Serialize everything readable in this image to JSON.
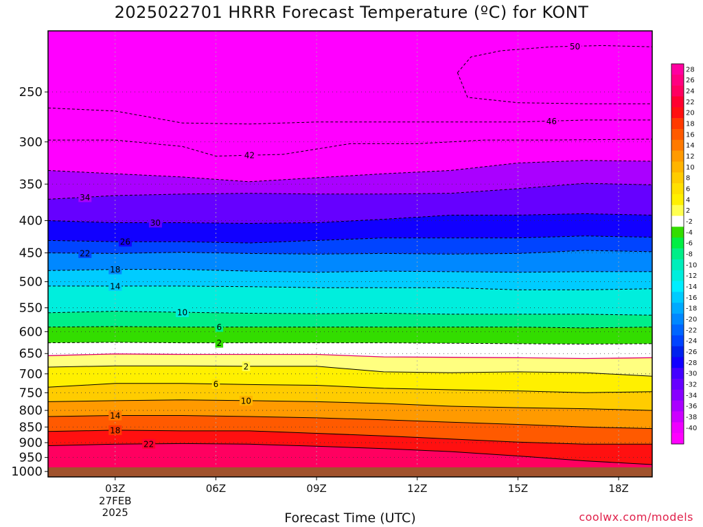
{
  "chart_data": {
    "type": "heatmap",
    "title": "2025022701 HRRR Forecast Temperature (ºC) for KONT",
    "xlabel": "Forecast Time (UTC)",
    "credit": "coolwx.com/models",
    "x_ticks": [
      {
        "label": "03Z",
        "hour": 3
      },
      {
        "label": "06Z",
        "hour": 6
      },
      {
        "label": "09Z",
        "hour": 9
      },
      {
        "label": "12Z",
        "hour": 12
      },
      {
        "label": "15Z",
        "hour": 15
      },
      {
        "label": "18Z",
        "hour": 18
      }
    ],
    "x_date_lines": [
      "27FEB",
      "2025"
    ],
    "x_range_hours": [
      1,
      19
    ],
    "y_ticks": [
      250,
      300,
      350,
      400,
      450,
      500,
      550,
      600,
      650,
      700,
      750,
      800,
      850,
      900,
      950,
      1000
    ],
    "y_range_hpa": [
      200,
      1020
    ],
    "y_scale": "log",
    "surface_pressure_hpa": 985,
    "colorbar": {
      "labels": [
        28,
        26,
        24,
        22,
        20,
        18,
        16,
        14,
        12,
        10,
        8,
        6,
        4,
        2,
        -2,
        -4,
        -6,
        -8,
        -10,
        -12,
        -14,
        -16,
        -18,
        -20,
        -22,
        -24,
        -26,
        -28,
        -30,
        -32,
        -34,
        -36,
        -38,
        -40
      ],
      "colors": [
        "#ff00a0",
        "#ff0080",
        "#ff0060",
        "#ff0030",
        "#ff1010",
        "#ff3a00",
        "#ff5a00",
        "#ff7a00",
        "#ff9a00",
        "#ffb400",
        "#ffcc00",
        "#ffe000",
        "#fff000",
        "#ffff50",
        "#ffffff",
        "#33dd00",
        "#00ee44",
        "#00ee88",
        "#00eebb",
        "#00eedd",
        "#00eeff",
        "#00ccff",
        "#00aaff",
        "#0088ff",
        "#0066ff",
        "#0044ff",
        "#0022ee",
        "#1100ff",
        "#4400ff",
        "#6600ff",
        "#8800ff",
        "#aa00ff",
        "#cc00ff",
        "#ee00ff",
        "#ff00ff"
      ]
    },
    "contours": [
      {
        "value": -50,
        "label_at_hour": 16.7,
        "points": [
          [
            13.2,
            233
          ],
          [
            13.6,
            220
          ],
          [
            14.5,
            215
          ],
          [
            16,
            212
          ],
          [
            17.5,
            211
          ],
          [
            19,
            212
          ]
        ],
        "hook": [
          [
            13.2,
            233
          ],
          [
            13.5,
            255
          ],
          [
            15,
            260
          ],
          [
            17,
            261
          ],
          [
            19,
            261
          ]
        ]
      },
      {
        "value": -46,
        "label_at_hour": 16,
        "points": [
          [
            1,
            265
          ],
          [
            3,
            268
          ],
          [
            5,
            280
          ],
          [
            7,
            281
          ],
          [
            9,
            279
          ],
          [
            11,
            279
          ],
          [
            13,
            279
          ],
          [
            15,
            279
          ],
          [
            17,
            277
          ],
          [
            19,
            277
          ]
        ]
      },
      {
        "value": -42,
        "label_at_hour": 7,
        "points": [
          [
            1,
            298
          ],
          [
            3,
            298
          ],
          [
            5,
            305
          ],
          [
            6,
            316
          ],
          [
            8,
            314
          ],
          [
            10,
            302
          ],
          [
            12,
            302
          ],
          [
            14,
            298
          ],
          [
            16,
            298
          ],
          [
            19,
            297
          ]
        ]
      },
      {
        "value": -38,
        "label_at_hour": null,
        "points": [
          [
            1,
            333
          ],
          [
            3,
            337
          ],
          [
            5,
            341
          ],
          [
            7,
            347
          ],
          [
            9,
            342
          ],
          [
            11,
            337
          ],
          [
            13,
            333
          ],
          [
            15,
            324
          ],
          [
            17,
            321
          ],
          [
            19,
            322
          ]
        ]
      },
      {
        "value": -34,
        "label_at_hour": 2.1,
        "points": [
          [
            1,
            370
          ],
          [
            3,
            365
          ],
          [
            5,
            363
          ],
          [
            7,
            362
          ],
          [
            9,
            363
          ],
          [
            11,
            363
          ],
          [
            13,
            362
          ],
          [
            15,
            356
          ],
          [
            17,
            349
          ],
          [
            19,
            351
          ]
        ]
      },
      {
        "value": -30,
        "label_at_hour": 4.2,
        "points": [
          [
            1,
            400
          ],
          [
            3,
            403
          ],
          [
            5,
            403
          ],
          [
            7,
            404
          ],
          [
            9,
            403
          ],
          [
            11,
            398
          ],
          [
            13,
            392
          ],
          [
            15,
            392
          ],
          [
            17,
            390
          ],
          [
            19,
            392
          ]
        ]
      },
      {
        "value": -26,
        "label_at_hour": 3.3,
        "points": [
          [
            1,
            430
          ],
          [
            3,
            432
          ],
          [
            5,
            432
          ],
          [
            7,
            434
          ],
          [
            9,
            430
          ],
          [
            11,
            426
          ],
          [
            13,
            426
          ],
          [
            15,
            426
          ],
          [
            17,
            423
          ],
          [
            19,
            425
          ]
        ]
      },
      {
        "value": -22,
        "label_at_hour": 2.1,
        "points": [
          [
            1,
            450
          ],
          [
            3,
            451
          ],
          [
            5,
            449
          ],
          [
            7,
            451
          ],
          [
            9,
            452
          ],
          [
            11,
            451
          ],
          [
            13,
            452
          ],
          [
            15,
            451
          ],
          [
            17,
            446
          ],
          [
            19,
            448
          ]
        ]
      },
      {
        "value": -18,
        "label_at_hour": 3,
        "points": [
          [
            1,
            480
          ],
          [
            3,
            478
          ],
          [
            5,
            478
          ],
          [
            7,
            481
          ],
          [
            9,
            483
          ],
          [
            11,
            481
          ],
          [
            13,
            482
          ],
          [
            15,
            483
          ],
          [
            17,
            482
          ],
          [
            19,
            482
          ]
        ]
      },
      {
        "value": -14,
        "label_at_hour": 3,
        "points": [
          [
            1,
            508
          ],
          [
            3,
            508
          ],
          [
            5,
            508
          ],
          [
            7,
            509
          ],
          [
            9,
            511
          ],
          [
            11,
            511
          ],
          [
            13,
            511
          ],
          [
            15,
            515
          ],
          [
            17,
            515
          ],
          [
            19,
            513
          ]
        ]
      },
      {
        "value": -10,
        "label_at_hour": 5,
        "points": [
          [
            1,
            560
          ],
          [
            3,
            557
          ],
          [
            5,
            559
          ],
          [
            7,
            561
          ],
          [
            9,
            562
          ],
          [
            11,
            561
          ],
          [
            13,
            563
          ],
          [
            15,
            563
          ],
          [
            17,
            563
          ],
          [
            19,
            565
          ]
        ]
      },
      {
        "value": -6,
        "label_at_hour": 6.1,
        "points": [
          [
            1,
            590
          ],
          [
            3,
            589
          ],
          [
            5,
            590
          ],
          [
            7,
            590
          ],
          [
            9,
            590
          ],
          [
            11,
            590
          ],
          [
            13,
            590
          ],
          [
            15,
            590
          ],
          [
            17,
            592
          ],
          [
            19,
            590
          ]
        ]
      },
      {
        "value": -2,
        "label_at_hour": 6.1,
        "points": [
          [
            1,
            625
          ],
          [
            3,
            624
          ],
          [
            5,
            625
          ],
          [
            7,
            625
          ],
          [
            9,
            625
          ],
          [
            11,
            625
          ],
          [
            13,
            626
          ],
          [
            15,
            627
          ],
          [
            17,
            628
          ],
          [
            19,
            627
          ]
        ]
      },
      {
        "value": 0,
        "label_at_hour": null,
        "points": [
          [
            1,
            655
          ],
          [
            3,
            651
          ],
          [
            5,
            652
          ],
          [
            7,
            652
          ],
          [
            9,
            652
          ],
          [
            11,
            658
          ],
          [
            13,
            659
          ],
          [
            15,
            660
          ],
          [
            17,
            662
          ],
          [
            19,
            660
          ]
        ]
      },
      {
        "value": 2,
        "label_at_hour": 6.9,
        "points": [
          [
            1,
            683
          ],
          [
            3,
            680
          ],
          [
            5,
            680
          ],
          [
            7,
            681
          ],
          [
            9,
            681
          ],
          [
            11,
            695
          ],
          [
            13,
            697
          ],
          [
            15,
            695
          ],
          [
            17,
            697
          ],
          [
            19,
            706
          ]
        ]
      },
      {
        "value": 6,
        "label_at_hour": 6,
        "points": [
          [
            1,
            735
          ],
          [
            3,
            725
          ],
          [
            5,
            725
          ],
          [
            7,
            728
          ],
          [
            9,
            730
          ],
          [
            11,
            738
          ],
          [
            13,
            742
          ],
          [
            15,
            745
          ],
          [
            17,
            750
          ],
          [
            19,
            747
          ]
        ]
      },
      {
        "value": 10,
        "label_at_hour": 6.9,
        "points": [
          [
            1,
            775
          ],
          [
            3,
            772
          ],
          [
            5,
            770
          ],
          [
            7,
            772
          ],
          [
            9,
            775
          ],
          [
            11,
            780
          ],
          [
            13,
            788
          ],
          [
            15,
            792
          ],
          [
            17,
            795
          ],
          [
            19,
            800
          ]
        ]
      },
      {
        "value": 14,
        "label_at_hour": 3,
        "points": [
          [
            1,
            818
          ],
          [
            3,
            815
          ],
          [
            5,
            815
          ],
          [
            7,
            818
          ],
          [
            9,
            822
          ],
          [
            11,
            828
          ],
          [
            13,
            835
          ],
          [
            15,
            842
          ],
          [
            17,
            850
          ],
          [
            19,
            855
          ]
        ]
      },
      {
        "value": 18,
        "label_at_hour": 3,
        "points": [
          [
            1,
            864
          ],
          [
            3,
            860
          ],
          [
            5,
            862
          ],
          [
            7,
            862
          ],
          [
            9,
            870
          ],
          [
            11,
            878
          ],
          [
            13,
            888
          ],
          [
            15,
            898
          ],
          [
            17,
            905
          ],
          [
            19,
            905
          ]
        ]
      },
      {
        "value": 22,
        "label_at_hour": 4,
        "points": [
          [
            1,
            910
          ],
          [
            3,
            905
          ],
          [
            5,
            903
          ],
          [
            7,
            905
          ],
          [
            9,
            912
          ],
          [
            11,
            920
          ],
          [
            13,
            930
          ],
          [
            15,
            945
          ],
          [
            17,
            962
          ],
          [
            19,
            975
          ]
        ]
      }
    ]
  }
}
